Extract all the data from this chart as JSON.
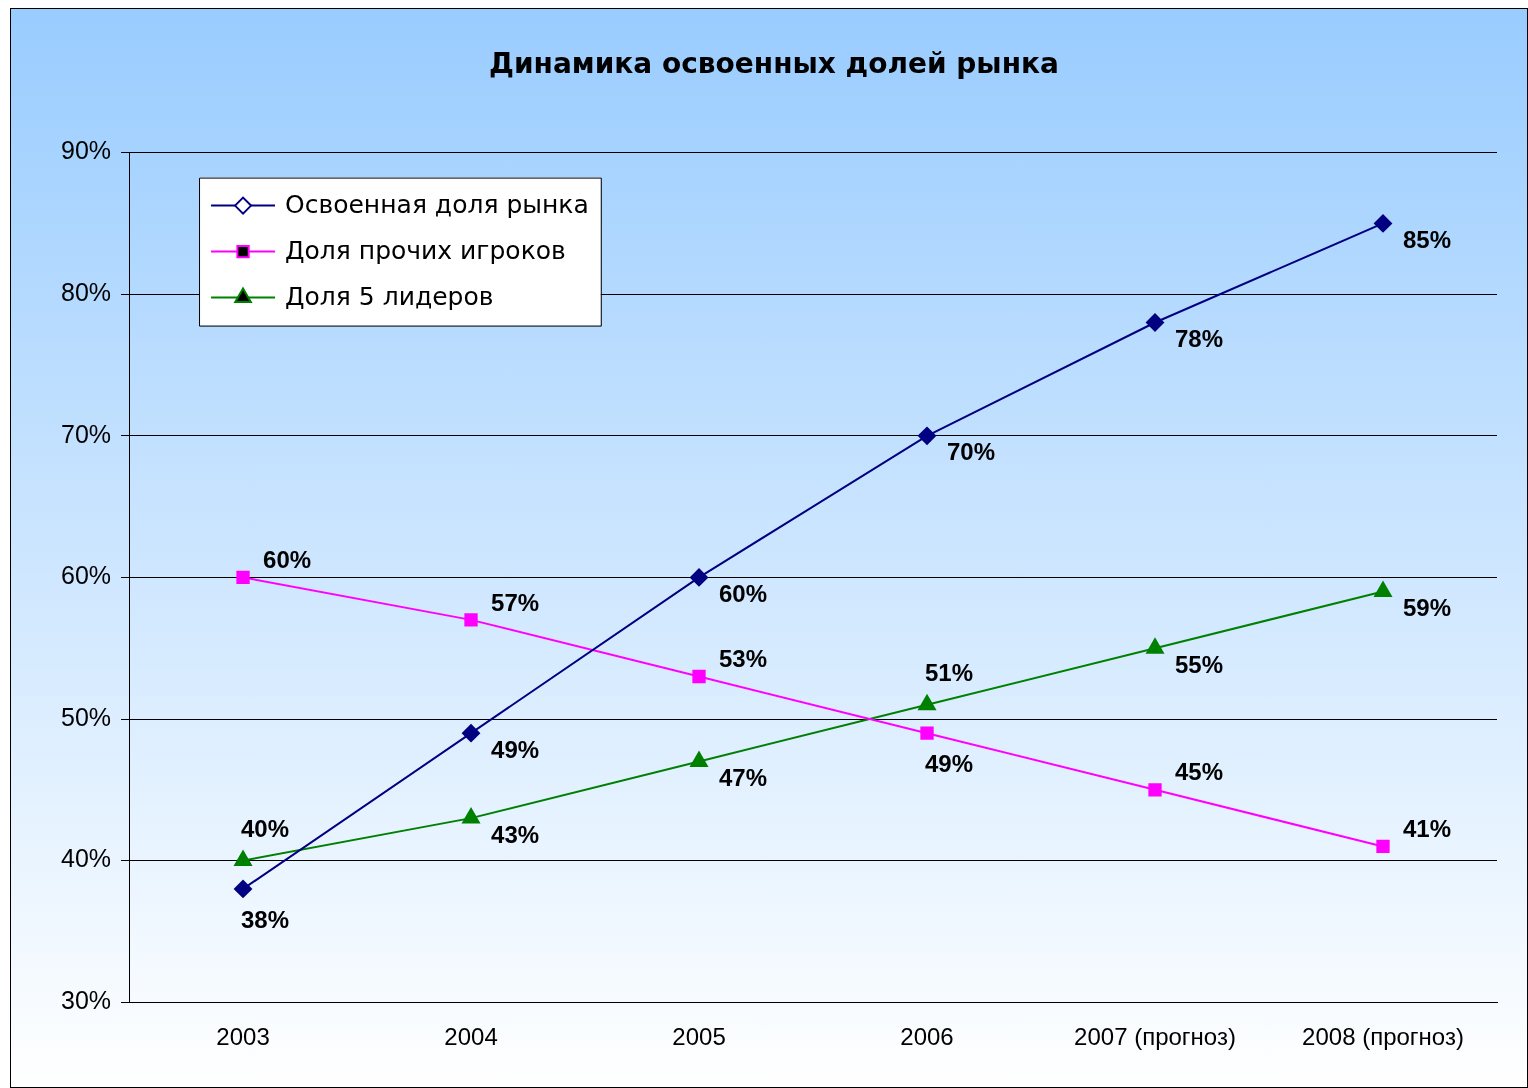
{
  "chart_data": {
    "type": "line",
    "title": "Динамика освоенных долей рынка",
    "categories": [
      "2003",
      "2004",
      "2005",
      "2006",
      "2007 (прогноз)",
      "2008 (прогноз)"
    ],
    "series": [
      {
        "name": "Освоенная доля рынка",
        "color": "#000080",
        "marker": "diamond",
        "values": [
          38,
          49,
          60,
          70,
          78,
          85
        ],
        "value_labels": [
          "38%",
          "49%",
          "60%",
          "70%",
          "78%",
          "85%"
        ]
      },
      {
        "name": "Доля прочих игроков",
        "color": "#ff00ff",
        "marker": "square",
        "values": [
          60,
          57,
          53,
          49,
          45,
          41
        ],
        "value_labels": [
          "60%",
          "57%",
          "53%",
          "49%",
          "45%",
          "41%"
        ]
      },
      {
        "name": "Доля 5 лидеров",
        "color": "#008000",
        "marker": "triangle",
        "values": [
          40,
          43,
          47,
          51,
          55,
          59
        ],
        "value_labels": [
          "40%",
          "43%",
          "47%",
          "51%",
          "55%",
          "59%"
        ]
      }
    ],
    "ylim": [
      30,
      90
    ],
    "yticks": [
      {
        "value": 30,
        "label": "30%"
      },
      {
        "value": 40,
        "label": "40%"
      },
      {
        "value": 50,
        "label": "50%"
      },
      {
        "value": 60,
        "label": "60%"
      },
      {
        "value": 70,
        "label": "70%"
      },
      {
        "value": 80,
        "label": "80%"
      },
      {
        "value": 90,
        "label": "90%"
      }
    ],
    "grid": "y",
    "legend": "top left"
  }
}
